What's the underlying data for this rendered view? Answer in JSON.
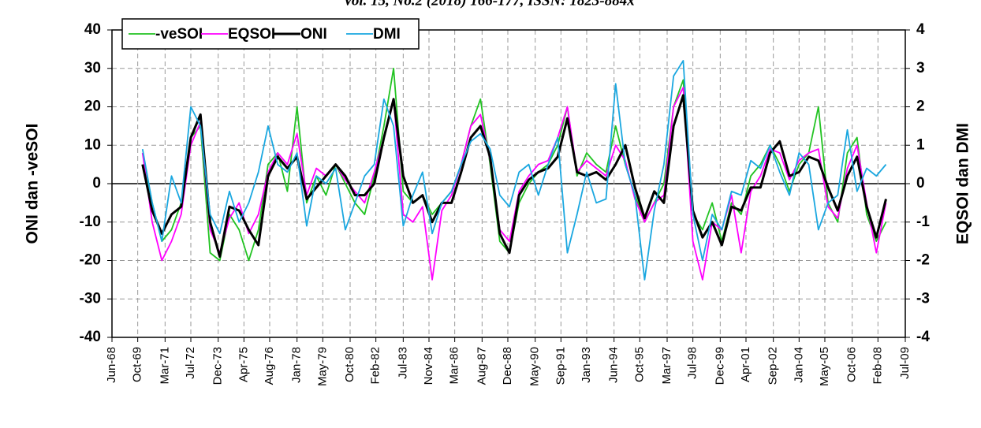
{
  "page_header": "Vol. 15, No.2 (2018) 166-177, ISSN: 1823-884x",
  "chart_data": {
    "type": "line",
    "y_label": "ONI dan -veSOI",
    "y2_label": "EQSOI dan DMI",
    "x": [
      "Jan-70",
      "Jul-70",
      "Jan-71",
      "Jul-71",
      "Jan-72",
      "Jul-72",
      "Jan-73",
      "Jul-73",
      "Jan-74",
      "Jul-74",
      "Jan-75",
      "Jul-75",
      "Jan-76",
      "Jul-76",
      "Jan-77",
      "Jul-77",
      "Jan-78",
      "Jul-78",
      "Jan-79",
      "Jul-79",
      "Jan-80",
      "Jul-80",
      "Jan-81",
      "Jul-81",
      "Jan-82",
      "Jul-82",
      "Jan-83",
      "Jul-83",
      "Jan-84",
      "Jul-84",
      "Jan-85",
      "Jul-85",
      "Jan-86",
      "Jul-86",
      "Jan-87",
      "Jul-87",
      "Jan-88",
      "Jul-88",
      "Jan-89",
      "Jul-89",
      "Jan-90",
      "Jul-90",
      "Jan-91",
      "Jul-91",
      "Jan-92",
      "Jul-92",
      "Jan-93",
      "Jul-93",
      "Jan-94",
      "Jul-94",
      "Jan-95",
      "Jul-95",
      "Jan-96",
      "Jul-96",
      "Jan-97",
      "Jul-97",
      "Jan-98",
      "Jul-98",
      "Jan-99",
      "Jul-99",
      "Jan-00",
      "Jul-00",
      "Jan-01",
      "Jul-01",
      "Jan-02",
      "Jul-02",
      "Jan-03",
      "Jul-03",
      "Jan-04",
      "Jul-04",
      "Jan-05",
      "Jul-05",
      "Jan-06",
      "Jul-06",
      "Jan-07",
      "Jul-07",
      "Jan-08",
      "Jul-08"
    ],
    "series": [
      {
        "name": "-veSOI",
        "color": "#22c322",
        "axis": "y",
        "width": 1.8,
        "values": [
          8,
          -5,
          -15,
          -12,
          -5,
          12,
          15,
          -18,
          -20,
          -8,
          -12,
          -20,
          -12,
          5,
          8,
          -2,
          20,
          -5,
          2,
          -3,
          5,
          0,
          -5,
          -8,
          2,
          15,
          30,
          -2,
          -5,
          -3,
          -8,
          -5,
          -2,
          5,
          15,
          22,
          5,
          -15,
          -18,
          -5,
          0,
          3,
          5,
          10,
          20,
          2,
          8,
          5,
          3,
          15,
          5,
          -3,
          -10,
          -5,
          0,
          20,
          27,
          -8,
          -12,
          -5,
          -15,
          -5,
          -8,
          2,
          5,
          10,
          5,
          -2,
          5,
          8,
          20,
          -5,
          -10,
          8,
          12,
          -8,
          -15,
          -10
        ]
      },
      {
        "name": "EQSOI",
        "color": "#ff00ff",
        "axis": "y2",
        "width": 1.8,
        "values": [
          0.8,
          -1.0,
          -2.0,
          -1.5,
          -0.8,
          1.0,
          1.6,
          -1.2,
          -1.8,
          -0.9,
          -0.5,
          -1.3,
          -0.8,
          0.3,
          0.8,
          0.5,
          1.3,
          -0.3,
          0.4,
          0.2,
          0.5,
          0.1,
          -0.2,
          -0.5,
          0.3,
          1.2,
          2.2,
          -0.8,
          -1.0,
          -0.6,
          -2.5,
          -0.7,
          -0.3,
          0.5,
          1.5,
          1.8,
          0.6,
          -1.2,
          -1.5,
          -0.2,
          0.2,
          0.5,
          0.6,
          1.2,
          2.0,
          0.3,
          0.6,
          0.4,
          0.2,
          1.0,
          0.6,
          -0.4,
          -1.0,
          -0.5,
          -0.3,
          2.0,
          2.5,
          -1.5,
          -2.5,
          -1.0,
          -1.2,
          -0.3,
          -1.8,
          -0.2,
          0.2,
          0.9,
          0.8,
          0.1,
          0.6,
          0.8,
          0.9,
          -0.6,
          -0.9,
          0.4,
          1.0,
          -0.5,
          -1.8,
          -0.5
        ]
      },
      {
        "name": "ONI",
        "color": "#000000",
        "axis": "y2",
        "width": 3,
        "values": [
          0.5,
          -0.7,
          -1.3,
          -0.8,
          -0.6,
          1.2,
          1.8,
          -1.0,
          -1.9,
          -0.6,
          -0.7,
          -1.2,
          -1.6,
          0.2,
          0.7,
          0.4,
          0.7,
          -0.4,
          -0.1,
          0.2,
          0.5,
          0.2,
          -0.3,
          -0.3,
          0.0,
          1.2,
          2.2,
          0.2,
          -0.5,
          -0.3,
          -1.0,
          -0.5,
          -0.5,
          0.3,
          1.2,
          1.5,
          0.7,
          -1.3,
          -1.8,
          -0.3,
          0.1,
          0.3,
          0.4,
          0.7,
          1.7,
          0.3,
          0.2,
          0.3,
          0.1,
          0.5,
          1.0,
          -0.1,
          -0.9,
          -0.2,
          -0.5,
          1.5,
          2.3,
          -0.7,
          -1.4,
          -1.0,
          -1.6,
          -0.6,
          -0.7,
          -0.1,
          -0.1,
          0.8,
          1.1,
          0.2,
          0.3,
          0.7,
          0.6,
          -0.1,
          -0.7,
          0.2,
          0.7,
          -0.6,
          -1.4,
          -0.4
        ]
      },
      {
        "name": "DMI",
        "color": "#1aa7e0",
        "axis": "y2",
        "width": 1.8,
        "values": [
          0.9,
          -0.5,
          -1.5,
          0.2,
          -0.5,
          2.0,
          1.5,
          -0.8,
          -1.3,
          -0.2,
          -1.0,
          -0.5,
          0.3,
          1.5,
          0.5,
          0.3,
          0.8,
          -1.1,
          0.2,
          0.0,
          0.4,
          -1.2,
          -0.5,
          0.2,
          0.5,
          2.2,
          1.5,
          -1.1,
          -0.3,
          0.3,
          -1.3,
          -0.5,
          -0.2,
          0.5,
          1.1,
          1.3,
          0.9,
          -0.3,
          -0.6,
          0.3,
          0.5,
          -0.3,
          0.5,
          1.2,
          -1.8,
          -0.8,
          0.3,
          -0.5,
          -0.4,
          2.6,
          0.5,
          -0.3,
          -2.5,
          -0.7,
          0.5,
          2.8,
          3.2,
          -0.8,
          -2.0,
          -0.8,
          -1.2,
          -0.2,
          -0.3,
          0.6,
          0.4,
          1.0,
          0.3,
          -0.3,
          0.8,
          0.5,
          -1.2,
          -0.5,
          -0.3,
          1.4,
          -0.2,
          0.4,
          0.2,
          0.5
        ]
      }
    ],
    "xlim": [
      "Jun-68",
      "Jul-09"
    ],
    "xticks": [
      "Jun-68",
      "Oct-69",
      "Mar-71",
      "Jul-72",
      "Dec-73",
      "Apr-75",
      "Aug-76",
      "Jan-78",
      "May-79",
      "Oct-80",
      "Feb-82",
      "Jul-83",
      "Nov-84",
      "Mar-86",
      "Aug-87",
      "Dec-88",
      "May-90",
      "Sep-91",
      "Jan-93",
      "Jun-94",
      "Oct-95",
      "Mar-97",
      "Jul-98",
      "Dec-99",
      "Apr-01",
      "Sep-02",
      "Jan-04",
      "May-05",
      "Oct-06",
      "Feb-08",
      "Jul-09"
    ],
    "ylim": [
      -40,
      40
    ],
    "yticks": [
      -40,
      -30,
      -20,
      -10,
      0,
      10,
      20,
      30,
      40
    ],
    "y2lim": [
      -4,
      4
    ],
    "y2ticks": [
      -4,
      -3,
      -2,
      -1,
      0,
      1,
      2,
      3,
      4
    ],
    "grid": true,
    "legend": "top-left"
  }
}
